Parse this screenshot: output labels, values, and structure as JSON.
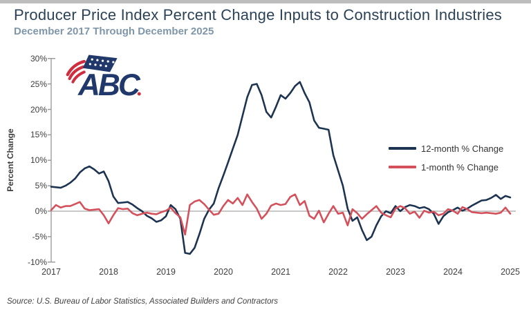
{
  "page": {
    "title": "Producer Price Index Percent Change Inputs to Construction Industries",
    "subtitle": "December 2017 Through December 2025",
    "source": "Source: U.S. Bureau of Labor Statistics, Associated Builders and Contractors"
  },
  "logo": {
    "text": "ABC",
    "navy": "#21386b",
    "red": "#cf2e3e"
  },
  "colors": {
    "navy_line": "#1c3351",
    "red_line": "#d4515c",
    "axis": "#9c9c9c",
    "zero_line": "#a6a6a6",
    "tick_text": "#3d3d3d",
    "title_text": "#2c4257",
    "subtitle_text": "#7f96a9"
  },
  "chart_data": {
    "type": "line",
    "title": "Producer Price Index Percent Change Inputs to Construction Industries",
    "subtitle": "December 2017 Through December 2025",
    "ylabel": "Percent Change",
    "ylim": [
      -10,
      30
    ],
    "y_tick_step": 5,
    "y_tick_values": [
      30,
      25,
      20,
      15,
      10,
      5,
      0,
      -5,
      -10
    ],
    "y_tick_labels": [
      "30%",
      "25%",
      "20%",
      "15%",
      "10%",
      "5%",
      "0%",
      "-5%",
      "-10%"
    ],
    "x_tick_labels": [
      "2017",
      "2018",
      "2019",
      "2020",
      "2021",
      "2022",
      "2023",
      "2024",
      "2025"
    ],
    "x_tick_note": "year ticks mark December of each year",
    "x_cadence": "monthly",
    "x_start": "Dec 2017",
    "x_end": "Dec 2025",
    "grid": "zero-line-only",
    "legend_position": "right-middle",
    "legend": [
      "12-month % Change",
      "1-month % Change"
    ],
    "series": [
      {
        "name": "12-month % Change",
        "color": "#1c3351",
        "values": [
          4.8,
          4.7,
          4.6,
          5.0,
          5.6,
          6.4,
          7.6,
          8.4,
          8.8,
          8.2,
          7.4,
          7.8,
          5.9,
          2.9,
          1.6,
          1.7,
          1.8,
          1.3,
          0.6,
          0.0,
          -0.9,
          -1.4,
          -2.1,
          -1.8,
          -1.0,
          1.2,
          0.4,
          -1.5,
          -8.2,
          -8.4,
          -7.2,
          -4.5,
          -1.5,
          0.3,
          1.5,
          4.5,
          7.0,
          9.6,
          12.3,
          15.0,
          18.7,
          22.4,
          24.8,
          25.0,
          22.8,
          19.5,
          18.4,
          20.5,
          22.8,
          22.1,
          23.2,
          24.6,
          25.4,
          23.2,
          21.4,
          17.8,
          16.4,
          16.2,
          16.0,
          11.0,
          8.0,
          5.0,
          0.5,
          -1.9,
          -1.2,
          -3.7,
          -5.7,
          -5.0,
          -2.8,
          -1.0,
          0.0,
          -0.4,
          1.0,
          0.0,
          0.8,
          1.2,
          1.0,
          0.6,
          0.8,
          0.4,
          -0.5,
          -2.5,
          -1.0,
          -0.2,
          0.2,
          0.7,
          0.1,
          0.5,
          1.1,
          1.6,
          2.1,
          2.2,
          2.6,
          3.2,
          2.4,
          3.0,
          2.7
        ]
      },
      {
        "name": "1-month % Change",
        "color": "#d4515c",
        "values": [
          0.2,
          1.2,
          0.7,
          1.0,
          1.0,
          1.4,
          1.8,
          0.5,
          0.2,
          0.3,
          0.4,
          -0.8,
          -2.4,
          -0.8,
          0.6,
          0.4,
          0.5,
          -0.4,
          -0.8,
          -0.5,
          -0.3,
          -0.5,
          -0.6,
          -0.2,
          0.1,
          0.7,
          -0.4,
          -1.2,
          -4.6,
          1.2,
          1.9,
          2.2,
          1.4,
          0.3,
          -0.7,
          -0.5,
          1.0,
          2.2,
          1.5,
          2.6,
          1.2,
          3.3,
          1.8,
          0.5,
          -1.5,
          -0.5,
          1.1,
          1.5,
          1.2,
          1.4,
          2.8,
          3.3,
          1.2,
          2.0,
          -0.9,
          -1.5,
          0.1,
          -2.2,
          -0.5,
          1.0,
          -0.5,
          -0.3,
          -2.8,
          0.4,
          -0.4,
          -1.5,
          -0.6,
          0.2,
          1.0,
          -0.3,
          -0.8,
          -1.2,
          0.5,
          1.0,
          0.6,
          -0.5,
          -0.1,
          -1.3,
          0.1,
          -0.3,
          -0.1,
          -0.8,
          -0.5,
          0.4,
          0.1,
          -0.5,
          0.8,
          0.4,
          -0.2,
          -0.3,
          -0.4,
          -0.3,
          -0.4,
          -0.5,
          -0.3,
          0.7,
          -0.5
        ]
      }
    ]
  }
}
